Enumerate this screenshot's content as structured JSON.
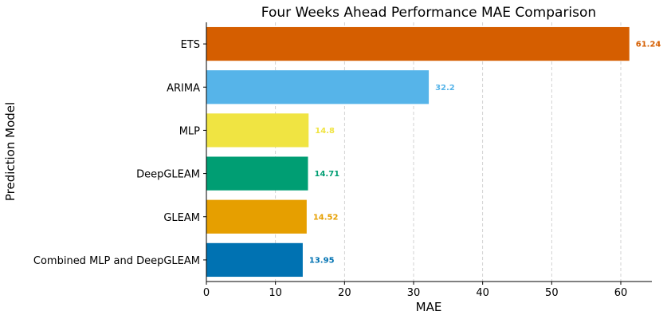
{
  "chart_data": {
    "type": "bar",
    "orientation": "horizontal",
    "title": "Four Weeks Ahead Performance MAE Comparison",
    "xlabel": "MAE",
    "ylabel": "Prediction Model",
    "xlim": [
      0,
      64.5
    ],
    "xticks": [
      0,
      10,
      20,
      30,
      40,
      50,
      60
    ],
    "grid": "x-dashed",
    "categories": [
      "ETS",
      "ARIMA",
      "MLP",
      "DeepGLEAM",
      "GLEAM",
      "Combined MLP and DeepGLEAM"
    ],
    "values": [
      61.24,
      32.2,
      14.8,
      14.71,
      14.52,
      13.95
    ],
    "value_labels": [
      "61.24",
      "32.2",
      "14.8",
      "14.71",
      "14.52",
      "13.95"
    ],
    "colors": [
      "#D55E00",
      "#56B4E9",
      "#F0E442",
      "#009E73",
      "#E69F00",
      "#0072B2"
    ]
  }
}
